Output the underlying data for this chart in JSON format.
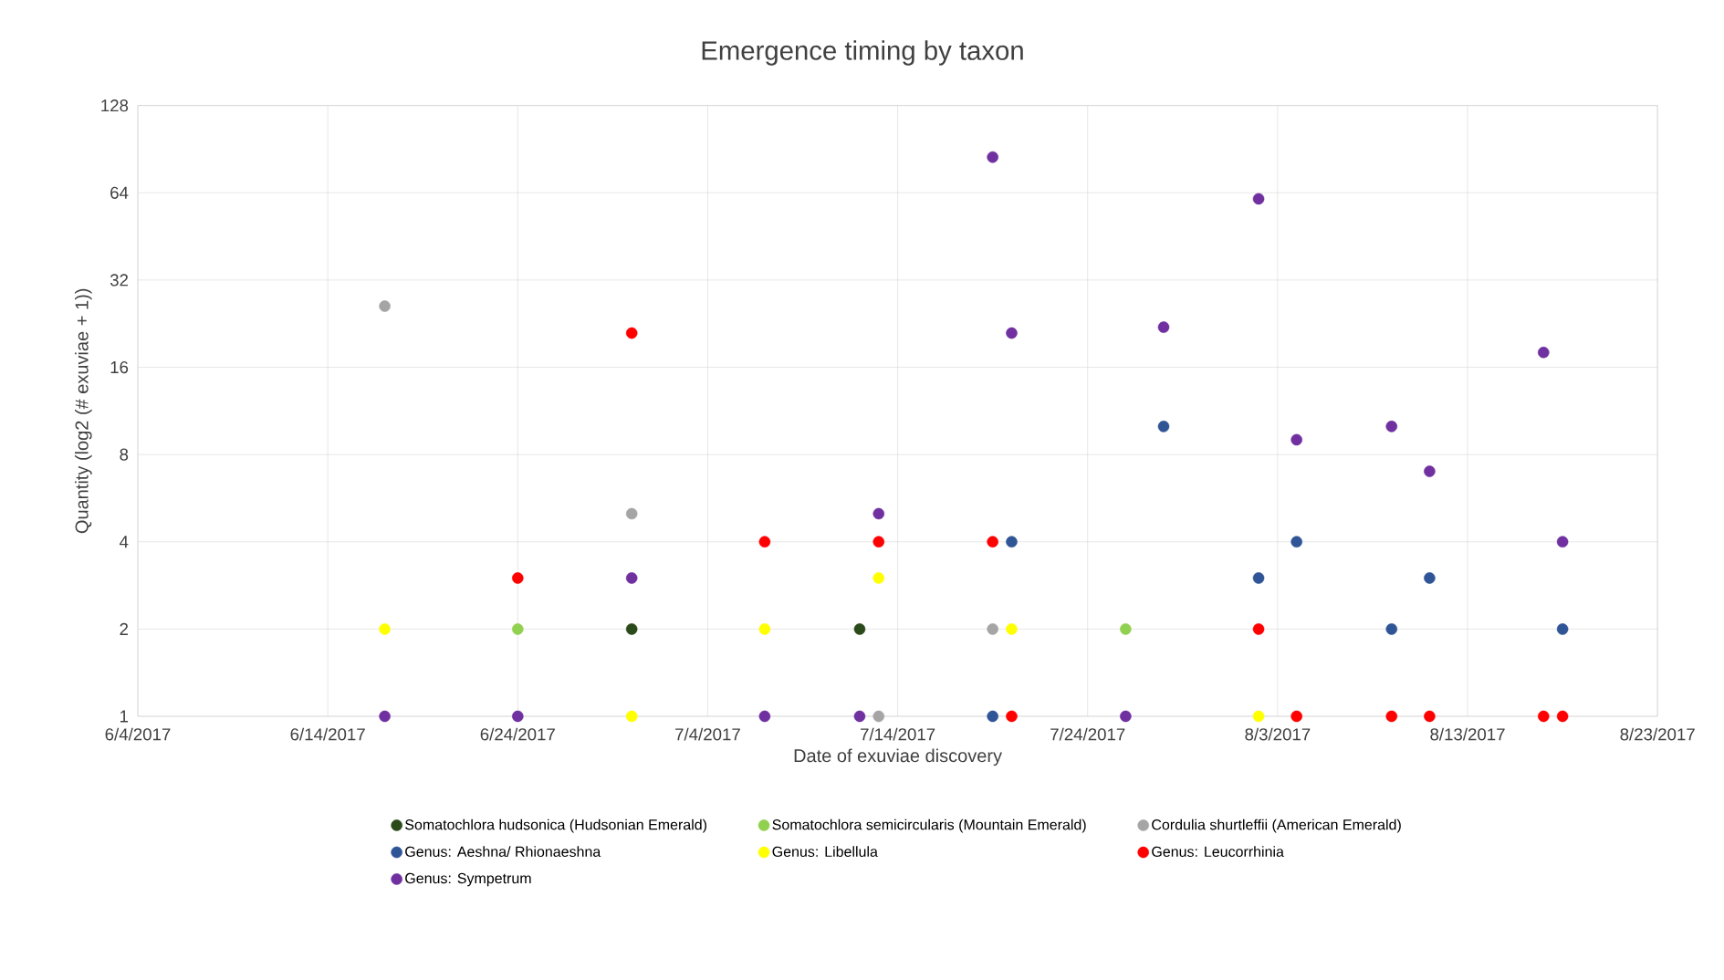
{
  "chart_data": {
    "type": "scatter",
    "title": "Emergence timing by taxon",
    "xlabel": "Date of exuviae discovery",
    "ylabel": "Quantity (log2 (# exuviae + 1))",
    "xlim": [
      "2017-06-04",
      "2017-08-23"
    ],
    "xticks": [
      {
        "value": "2017-06-04",
        "label": "6/4/2017"
      },
      {
        "value": "2017-06-14",
        "label": "6/14/2017"
      },
      {
        "value": "2017-06-24",
        "label": "6/24/2017"
      },
      {
        "value": "2017-07-04",
        "label": "7/4/2017"
      },
      {
        "value": "2017-07-14",
        "label": "7/14/2017"
      },
      {
        "value": "2017-07-24",
        "label": "7/24/2017"
      },
      {
        "value": "2017-08-03",
        "label": "8/3/2017"
      },
      {
        "value": "2017-08-13",
        "label": "8/13/2017"
      },
      {
        "value": "2017-08-23",
        "label": "8/23/2017"
      }
    ],
    "ylim": [
      1,
      128
    ],
    "yticks": [
      1,
      2,
      4,
      8,
      16,
      32,
      64,
      128
    ],
    "log": "y",
    "grid": true,
    "legend": "bottom",
    "marker": "circle",
    "series": [
      {
        "name": "Somatochlora hudsonica (Hudsonian Emerald)",
        "color": "#2b4a1a",
        "x": [
          "2017-06-30",
          "2017-07-12"
        ],
        "values": [
          2,
          2
        ]
      },
      {
        "name": "Somatochlora semicircularis (Mountain Emerald)",
        "color": "#92d050",
        "x": [
          "2017-06-24",
          "2017-07-26"
        ],
        "values": [
          2,
          2
        ]
      },
      {
        "name": "Cordulia shurtleffii (American Emerald)",
        "color": "#a5a5a5",
        "x": [
          "2017-06-17",
          "2017-06-30",
          "2017-07-13",
          "2017-07-19"
        ],
        "values": [
          26,
          5,
          1,
          2
        ]
      },
      {
        "name": "Genus: Aeshna/ Rhionaeshna",
        "color": "#2f5597",
        "x": [
          "2017-07-19",
          "2017-07-20",
          "2017-07-28",
          "2017-08-02",
          "2017-08-04",
          "2017-08-09",
          "2017-08-11",
          "2017-08-18"
        ],
        "values": [
          1,
          4,
          10,
          3,
          4,
          2,
          3,
          2
        ]
      },
      {
        "name": "Genus: Libellula",
        "color": "#ffff00",
        "x": [
          "2017-06-17",
          "2017-06-30",
          "2017-07-07",
          "2017-07-13",
          "2017-07-20",
          "2017-08-02"
        ],
        "values": [
          2,
          1,
          2,
          3,
          2,
          1
        ]
      },
      {
        "name": "Genus: Leucorrhinia",
        "color": "#ff0000",
        "x": [
          "2017-06-24",
          "2017-06-30",
          "2017-07-07",
          "2017-07-13",
          "2017-07-19",
          "2017-07-20",
          "2017-08-02",
          "2017-08-04",
          "2017-08-09",
          "2017-08-11",
          "2017-08-17",
          "2017-08-18"
        ],
        "values": [
          3,
          21,
          4,
          4,
          4,
          1,
          2,
          1,
          1,
          1,
          1,
          1
        ]
      },
      {
        "name": "Genus: Sympetrum",
        "color": "#7030a0",
        "x": [
          "2017-06-17",
          "2017-06-24",
          "2017-06-30",
          "2017-07-07",
          "2017-07-12",
          "2017-07-13",
          "2017-07-19",
          "2017-07-20",
          "2017-07-26",
          "2017-07-28",
          "2017-08-02",
          "2017-08-04",
          "2017-08-09",
          "2017-08-11",
          "2017-08-17",
          "2017-08-18"
        ],
        "values": [
          1,
          1,
          3,
          1,
          1,
          5,
          85,
          21,
          1,
          22,
          61,
          9,
          10,
          7,
          18,
          4
        ]
      }
    ]
  }
}
